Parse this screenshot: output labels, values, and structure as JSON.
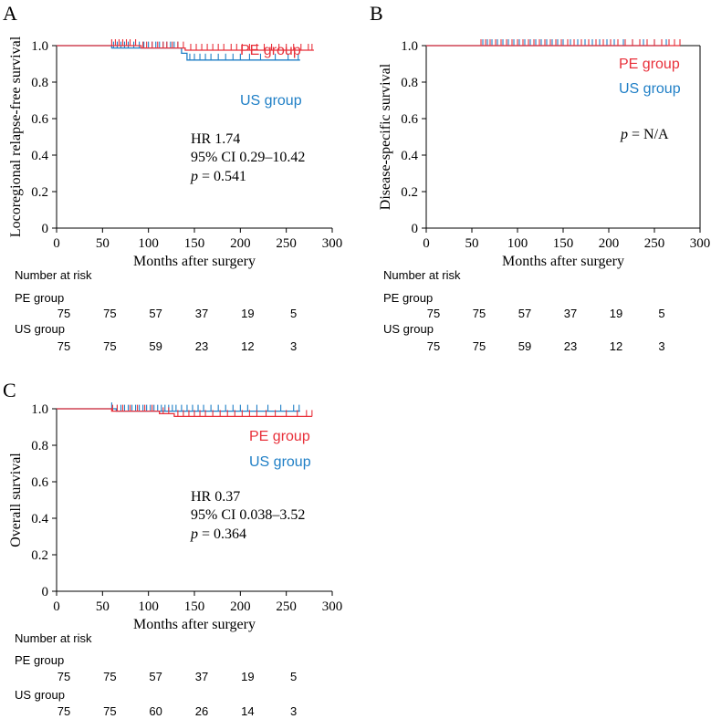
{
  "colors": {
    "pe": "#e8303a",
    "us": "#1f7fc6",
    "axis": "#000000"
  },
  "risk_header": "Number at risk",
  "chart_data": [
    {
      "panel_label": "A",
      "type": "line",
      "xlabel": "Months after surgery",
      "ylabel": "Locoregional relapse-free survival",
      "xlim": [
        0,
        300
      ],
      "ylim": [
        0,
        1.0
      ],
      "xticks": [
        "0",
        "50",
        "100",
        "150",
        "200",
        "250",
        "300"
      ],
      "yticks": [
        "0",
        "0.2",
        "0.4",
        "0.6",
        "0.8",
        "1.0"
      ],
      "grid": false,
      "legend": [
        "PE group",
        "US group"
      ],
      "stats": {
        "hr": "HR 1.74",
        "ci": "95% CI 0.29–10.42",
        "p_label": "p",
        "p_value": " = 0.541"
      },
      "series": [
        {
          "name": "PE group",
          "steps": [
            [
              0,
              1.0
            ],
            [
              92,
              1.0
            ],
            [
              92,
              0.987
            ],
            [
              140,
              0.987
            ],
            [
              140,
              0.975
            ],
            [
              280,
              0.975
            ]
          ],
          "censors": [
            60,
            64,
            68,
            72,
            76,
            80,
            86,
            94,
            98,
            104,
            110,
            116,
            120,
            126,
            132,
            138,
            146,
            152,
            158,
            164,
            170,
            176,
            182,
            190,
            196,
            202,
            210,
            218,
            226,
            234,
            242,
            250,
            258,
            266,
            274,
            278
          ]
        },
        {
          "name": "US group",
          "steps": [
            [
              0,
              1.0
            ],
            [
              60,
              1.0
            ],
            [
              60,
              0.987
            ],
            [
              136,
              0.987
            ],
            [
              136,
              0.958
            ],
            [
              142,
              0.958
            ],
            [
              142,
              0.921
            ],
            [
              265,
              0.921
            ]
          ],
          "censors": [
            62,
            66,
            70,
            74,
            78,
            84,
            90,
            95,
            100,
            104,
            108,
            112,
            116,
            120,
            124,
            128,
            132,
            145,
            150,
            156,
            162,
            168,
            176,
            184,
            192,
            200,
            210,
            222,
            238,
            252,
            263
          ]
        }
      ],
      "risk": {
        "PE group": [
          "75",
          "75",
          "57",
          "37",
          "19",
          "5"
        ],
        "US group": [
          "75",
          "75",
          "59",
          "23",
          "12",
          "3"
        ]
      }
    },
    {
      "panel_label": "B",
      "type": "line",
      "xlabel": "Months after surgery",
      "ylabel": "Disease-specific survival",
      "xlim": [
        0,
        300
      ],
      "ylim": [
        0,
        1.0
      ],
      "xticks": [
        "0",
        "50",
        "100",
        "150",
        "200",
        "250",
        "300"
      ],
      "yticks": [
        "0",
        "0.2",
        "0.4",
        "0.6",
        "0.8",
        "1.0"
      ],
      "grid": false,
      "legend": [
        "PE group",
        "US group"
      ],
      "stats": {
        "hr": "",
        "ci": "",
        "p_label": "p",
        "p_value": " = N/A"
      },
      "series": [
        {
          "name": "PE group",
          "steps": [
            [
              0,
              1.0
            ],
            [
              278,
              1.0
            ]
          ],
          "censors": [
            60,
            65,
            70,
            76,
            82,
            88,
            94,
            100,
            106,
            112,
            118,
            124,
            130,
            136,
            142,
            148,
            155,
            162,
            170,
            178,
            186,
            194,
            202,
            210,
            218,
            226,
            234,
            242,
            250,
            258,
            266,
            272,
            278
          ]
        },
        {
          "name": "US group",
          "steps": [
            [
              0,
              1.0
            ],
            [
              265,
              1.0
            ]
          ],
          "censors": [
            62,
            67,
            72,
            78,
            84,
            90,
            96,
            102,
            108,
            114,
            120,
            126,
            132,
            138,
            144,
            150,
            158,
            166,
            174,
            182,
            190,
            198,
            206,
            216,
            226,
            238,
            250,
            263
          ]
        }
      ],
      "risk": {
        "PE group": [
          "75",
          "75",
          "57",
          "37",
          "19",
          "5"
        ],
        "US group": [
          "75",
          "75",
          "59",
          "23",
          "12",
          "3"
        ]
      }
    },
    {
      "panel_label": "C",
      "type": "line",
      "xlabel": "Months after surgery",
      "ylabel": "Overall survival",
      "xlim": [
        0,
        300
      ],
      "ylim": [
        0,
        1.0
      ],
      "xticks": [
        "0",
        "50",
        "100",
        "150",
        "200",
        "250",
        "300"
      ],
      "yticks": [
        "0",
        "0.2",
        "0.4",
        "0.6",
        "0.8",
        "1.0"
      ],
      "grid": false,
      "legend": [
        "PE group",
        "US group"
      ],
      "stats": {
        "hr": "HR 0.37",
        "ci": "95% CI 0.038–3.52",
        "p_label": "p",
        "p_value": " = 0.364"
      },
      "series": [
        {
          "name": "PE group",
          "steps": [
            [
              0,
              1.0
            ],
            [
              60,
              1.0
            ],
            [
              60,
              0.987
            ],
            [
              112,
              0.987
            ],
            [
              112,
              0.973
            ],
            [
              128,
              0.973
            ],
            [
              128,
              0.958
            ],
            [
              278,
              0.958
            ]
          ],
          "censors": [
            61,
            66,
            72,
            80,
            88,
            96,
            104,
            116,
            122,
            132,
            138,
            144,
            150,
            156,
            162,
            170,
            178,
            186,
            194,
            202,
            210,
            218,
            228,
            238,
            250,
            262,
            272,
            278
          ]
        },
        {
          "name": "US group",
          "steps": [
            [
              0,
              1.0
            ],
            [
              65,
              1.0
            ],
            [
              65,
              0.987
            ],
            [
              265,
              0.987
            ]
          ],
          "censors": [
            60,
            66,
            70,
            74,
            78,
            82,
            86,
            90,
            94,
            98,
            102,
            106,
            110,
            114,
            118,
            122,
            126,
            130,
            136,
            142,
            148,
            154,
            160,
            168,
            176,
            184,
            192,
            200,
            208,
            218,
            230,
            244,
            258,
            264
          ]
        }
      ],
      "risk": {
        "PE group": [
          "75",
          "75",
          "57",
          "37",
          "19",
          "5"
        ],
        "US group": [
          "75",
          "75",
          "60",
          "26",
          "14",
          "3"
        ]
      }
    }
  ]
}
